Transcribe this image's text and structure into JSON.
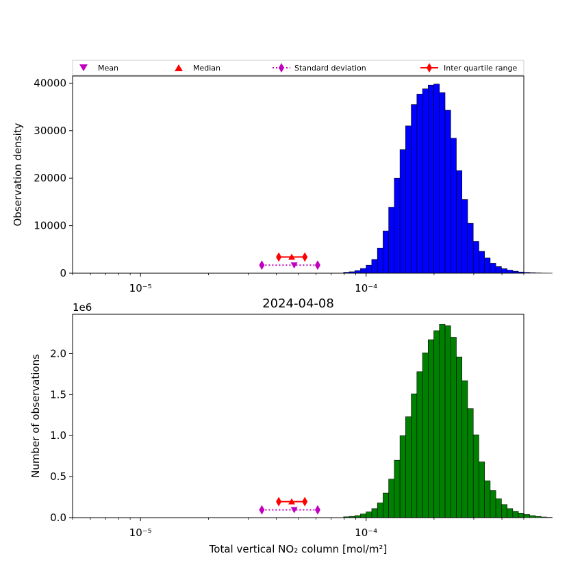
{
  "legend": {
    "mean": "Mean",
    "median": "Median",
    "std": "Standard deviation",
    "iqr": "Inter quartile range"
  },
  "colors": {
    "top_bars": "#0000ff",
    "bottom_bars": "#008000",
    "mean_marker": "#bf00bf",
    "median_marker": "#ff0000",
    "std_marker": "#bf00bf",
    "iqr_marker": "#ff0000"
  },
  "chart_data": [
    {
      "type": "bar",
      "panel": "top",
      "title": "",
      "xlabel": "",
      "ylabel": "Observation density",
      "xscale": "log",
      "xlim": [
        5e-06,
        0.0005
      ],
      "ylim": [
        0,
        41500
      ],
      "yticks": [
        0,
        10000,
        20000,
        30000,
        40000
      ],
      "ytick_labels": [
        "0",
        "10000",
        "20000",
        "30000",
        "40000"
      ],
      "xtick_labels": [
        "10⁻⁵",
        "10⁻⁴"
      ],
      "bin_log_start": -5.3,
      "bin_log_width": 0.025,
      "values": [
        0,
        0,
        0,
        0,
        0,
        0,
        0,
        0,
        0,
        0,
        0,
        0,
        0,
        0,
        0,
        0,
        0,
        0,
        0,
        0,
        0,
        0,
        0,
        0,
        0,
        0,
        0,
        0,
        0,
        0,
        0,
        0,
        0,
        0,
        0,
        0,
        0,
        0,
        0,
        0,
        0,
        0,
        0,
        0,
        0,
        0,
        0,
        0,
        200,
        300,
        550,
        1000,
        1700,
        2900,
        5300,
        8900,
        13900,
        20000,
        26000,
        31000,
        35500,
        37700,
        38800,
        39600,
        39800,
        38000,
        34300,
        28400,
        21600,
        15500,
        10500,
        6700,
        4600,
        3200,
        2100,
        1400,
        950,
        650,
        420,
        260,
        170,
        110,
        60,
        30,
        15,
        0,
        0,
        0,
        0,
        0,
        0,
        0,
        0,
        0,
        0,
        0,
        0,
        0,
        0,
        0,
        0,
        0,
        0,
        0,
        0,
        0,
        0,
        0,
        0,
        0,
        0,
        0,
        0,
        0,
        0,
        0,
        0,
        0,
        0,
        0
      ],
      "stats": {
        "iqr": [
          4.1e-05,
          4.68e-05,
          5.35e-05
        ],
        "iqr_y": 3400,
        "median": 4.68e-05,
        "median_y": 3400,
        "std": [
          3.45e-05,
          4.8e-05,
          6.1e-05
        ],
        "std_y": 1700,
        "mean": 4.8e-05,
        "mean_y": 1700
      }
    },
    {
      "type": "bar",
      "panel": "bottom",
      "title": "2024-04-08",
      "xlabel": "Total vertical NO₂ column [mol/m²]",
      "ylabel": "Number of observations",
      "xscale": "log",
      "xlim": [
        5e-06,
        0.0005
      ],
      "ylim": [
        0,
        2480000
      ],
      "yticks": [
        0,
        500000,
        1000000,
        1500000,
        2000000
      ],
      "ytick_labels": [
        "0.0",
        "0.5",
        "1.0",
        "1.5",
        "2.0"
      ],
      "yoffset_label": "1e6",
      "xtick_labels": [
        "10⁻⁵",
        "10⁻⁴"
      ],
      "bin_log_start": -5.3,
      "bin_log_width": 0.025,
      "values": [
        0,
        0,
        0,
        0,
        0,
        0,
        0,
        0,
        0,
        0,
        0,
        0,
        0,
        0,
        0,
        0,
        0,
        0,
        0,
        0,
        0,
        0,
        0,
        0,
        0,
        0,
        0,
        0,
        0,
        0,
        0,
        0,
        0,
        0,
        0,
        0,
        0,
        0,
        0,
        0,
        0,
        0,
        0,
        0,
        0,
        0,
        0,
        0,
        10000,
        15000,
        25000,
        45000,
        70000,
        110000,
        180000,
        300000,
        470000,
        700000,
        1000000,
        1230000,
        1510000,
        1780000,
        2010000,
        2170000,
        2280000,
        2360000,
        2340000,
        2200000,
        1960000,
        1670000,
        1330000,
        1010000,
        680000,
        450000,
        330000,
        230000,
        160000,
        110000,
        78000,
        55000,
        38000,
        25000,
        15000,
        8000,
        4000,
        0,
        0,
        0,
        0,
        0,
        0,
        0,
        0,
        0,
        0,
        0,
        0,
        0,
        0,
        0,
        0,
        0,
        0,
        0,
        0,
        0,
        0,
        0,
        0,
        0,
        0,
        0,
        0,
        0,
        0,
        0,
        0,
        0,
        0,
        0
      ],
      "stats": {
        "iqr": [
          4.1e-05,
          4.68e-05,
          5.35e-05
        ],
        "iqr_y": 195000,
        "median": 4.68e-05,
        "median_y": 195000,
        "std": [
          3.45e-05,
          4.8e-05,
          6.1e-05
        ],
        "std_y": 95000,
        "mean": 4.8e-05,
        "mean_y": 95000
      }
    }
  ]
}
